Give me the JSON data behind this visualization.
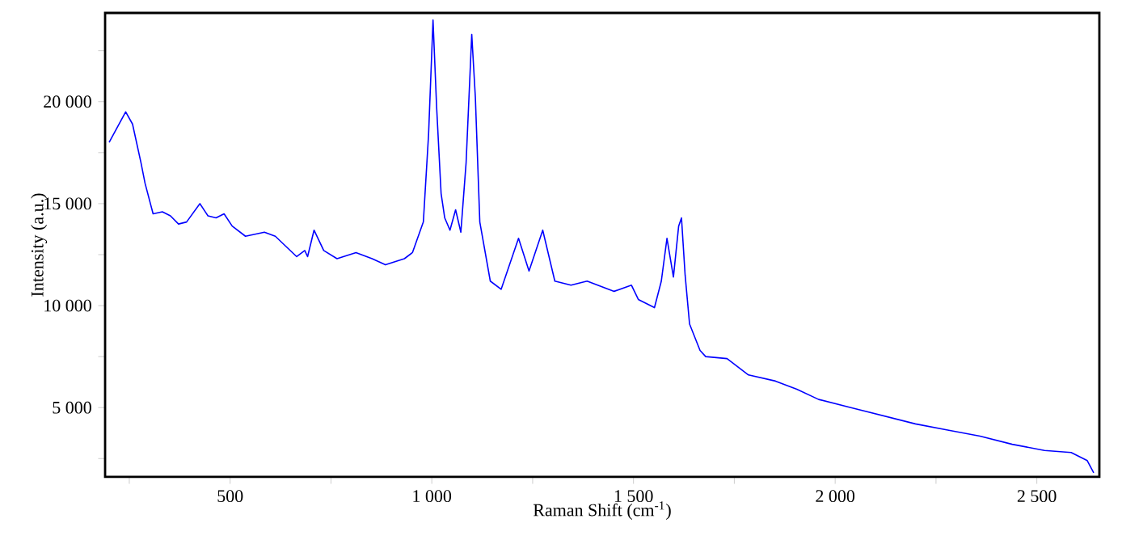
{
  "chart_data": {
    "type": "line",
    "xlabel": "Raman Shift (cm$^{-1}$)",
    "ylabel": "Intensity (a.u.)",
    "xlim": [
      190,
      2655
    ],
    "ylim": [
      1600,
      24350
    ],
    "xticks": [
      {
        "value": 250,
        "label": null
      },
      {
        "value": 500,
        "label": "500"
      },
      {
        "value": 750,
        "label": null
      },
      {
        "value": 1000,
        "label": "1 000"
      },
      {
        "value": 1250,
        "label": null
      },
      {
        "value": 1500,
        "label": "1 500"
      },
      {
        "value": 1750,
        "label": null
      },
      {
        "value": 2000,
        "label": "2 000"
      },
      {
        "value": 2250,
        "label": null
      },
      {
        "value": 2500,
        "label": "2 500"
      }
    ],
    "yticks": [
      {
        "value": 2500,
        "label": null
      },
      {
        "value": 5000,
        "label": "5 000"
      },
      {
        "value": 7500,
        "label": null
      },
      {
        "value": 10000,
        "label": "10 000"
      },
      {
        "value": 12500,
        "label": null
      },
      {
        "value": 15000,
        "label": "15 000"
      },
      {
        "value": 17500,
        "label": null
      },
      {
        "value": 20000,
        "label": "20 000"
      },
      {
        "value": 22500,
        "label": null
      }
    ],
    "grid": false,
    "marker": "none",
    "line_style": "solid",
    "series": [
      {
        "color": "#0000ff",
        "x": [
          200,
          241,
          258,
          279,
          289,
          309,
          332,
          352,
          372,
          392,
          425,
          445,
          465,
          485,
          505,
          538,
          585,
          612,
          665,
          685,
          692,
          708,
          732,
          765,
          812,
          852,
          885,
          932,
          952,
          979,
          992,
          1003,
          1012,
          1023,
          1032,
          1045,
          1059,
          1072,
          1085,
          1099,
          1108,
          1119,
          1145,
          1172,
          1215,
          1241,
          1275,
          1305,
          1345,
          1385,
          1452,
          1495,
          1512,
          1552,
          1569,
          1583,
          1599,
          1612,
          1619,
          1628,
          1639,
          1665,
          1679,
          1732,
          1785,
          1852,
          1905,
          1959,
          2039,
          2119,
          2199,
          2279,
          2359,
          2439,
          2519,
          2585,
          2625,
          2641
        ],
        "values": [
          18000,
          19500,
          18900,
          17000,
          16000,
          14500,
          14600,
          14400,
          14000,
          14100,
          15000,
          14400,
          14300,
          14500,
          13900,
          13400,
          13600,
          13400,
          12400,
          12700,
          12400,
          13700,
          12700,
          12300,
          12600,
          12300,
          12000,
          12300,
          12600,
          14100,
          18400,
          24000,
          19700,
          15500,
          14300,
          13700,
          14700,
          13600,
          17000,
          23300,
          20200,
          14100,
          11200,
          10800,
          13300,
          11700,
          13700,
          11200,
          11000,
          11200,
          10700,
          11000,
          10300,
          9900,
          11200,
          13300,
          11400,
          13900,
          14300,
          11500,
          9100,
          7800,
          7500,
          7400,
          6600,
          6300,
          5900,
          5400,
          5000,
          4600,
          4200,
          3900,
          3600,
          3200,
          2900,
          2800,
          2400,
          1800
        ]
      }
    ]
  }
}
